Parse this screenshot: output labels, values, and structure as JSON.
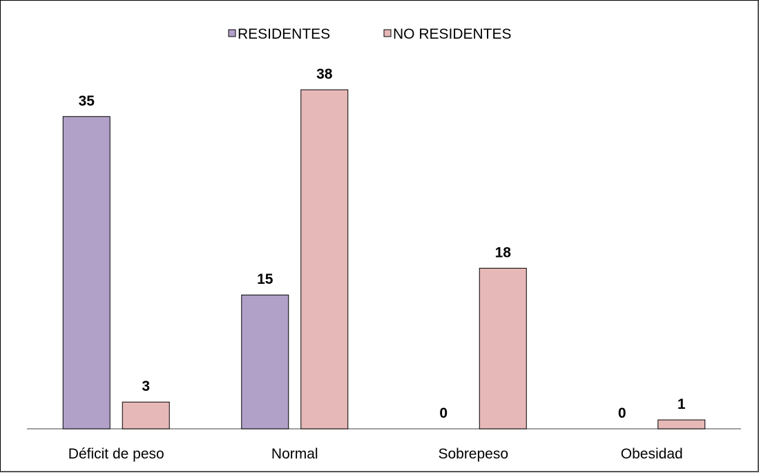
{
  "chart_data": {
    "type": "bar",
    "title": "",
    "xlabel": "",
    "ylabel": "",
    "categories": [
      "Déficit de peso",
      "Normal",
      "Sobrepeso",
      "Obesidad"
    ],
    "series": [
      {
        "name": "RESIDENTES",
        "values": [
          35,
          15,
          0,
          0
        ],
        "color": "#b1a0c7"
      },
      {
        "name": "NO RESIDENTES",
        "values": [
          3,
          38,
          18,
          1
        ],
        "color": "#e6b8b7"
      }
    ],
    "ylim": [
      0,
      38
    ],
    "grid": false,
    "legend": "top-center",
    "data_labels": true
  }
}
